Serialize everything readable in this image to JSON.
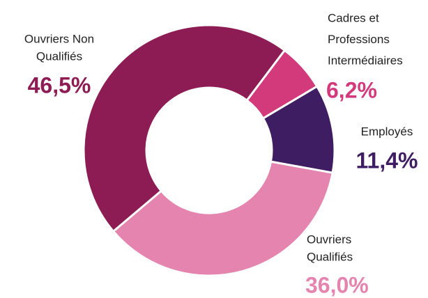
{
  "chart_data": {
    "type": "donut",
    "categories": [
      [
        "Cadres et",
        "Professions",
        "Intermédiaires"
      ],
      [
        "Employés"
      ],
      [
        "Ouvriers",
        "Qualifiés"
      ],
      [
        "Ouvriers Non",
        "Qualifiés"
      ]
    ],
    "values": [
      6.2,
      11.4,
      36.0,
      46.5
    ],
    "value_labels": [
      "6,2%",
      "11,4%",
      "36,0%",
      "46,5%"
    ],
    "colors": [
      "#d23a7c",
      "#3f1d63",
      "#e584ae",
      "#8e1c54"
    ]
  }
}
